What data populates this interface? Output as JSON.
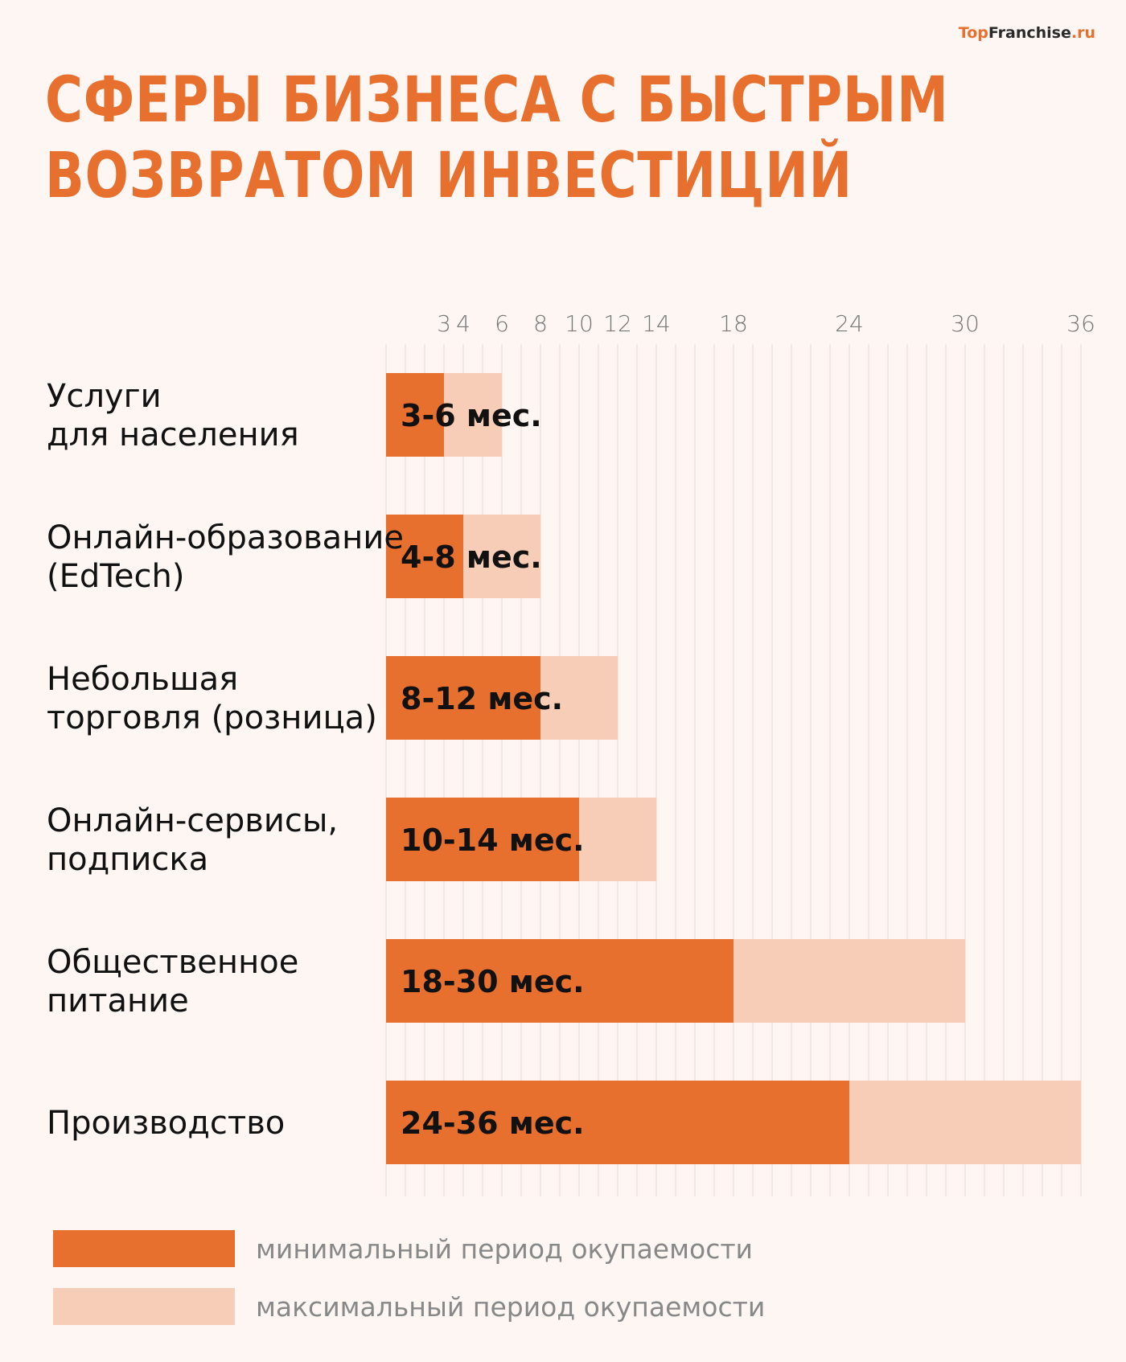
{
  "logo": {
    "part1": "Top",
    "part2": "Franchise",
    "part3": ".ru"
  },
  "title": [
    "СФЕРЫ БИЗНЕСА С БЫСТРЫМ",
    "ВОЗВРАТОМ ИНВЕСТИЦИЙ"
  ],
  "chart_data": {
    "type": "bar",
    "orientation": "horizontal-range",
    "title": "Сферы бизнеса с быстрым возвратом инвестиций",
    "xlim": [
      0,
      36
    ],
    "ticks": [
      3,
      4,
      6,
      8,
      10,
      12,
      14,
      18,
      24,
      30,
      36
    ],
    "categories": [
      [
        "Услуги",
        "для населения"
      ],
      [
        "Онлайн-образование",
        "(EdTech)"
      ],
      [
        "Небольшая",
        "торговля (розница)"
      ],
      [
        "Онлайн-сервисы,",
        "подписка"
      ],
      [
        "Общественное",
        "питание"
      ],
      [
        "Производство"
      ]
    ],
    "series": [
      {
        "name": "минимальный период окупаемости",
        "values": [
          3,
          4,
          8,
          10,
          18,
          24
        ]
      },
      {
        "name": "максимальный период окупаемости",
        "values": [
          6,
          8,
          12,
          14,
          30,
          36
        ]
      }
    ],
    "labels": [
      "3-6 мес.",
      "4-8 мес.",
      "8-12 мес.",
      "10-14 мес.",
      "18-30 мес.",
      "24-36 мес."
    ],
    "colors": {
      "min": "#e8702f",
      "max": "#f7cdb7",
      "grid": "#e6dcd7"
    }
  }
}
